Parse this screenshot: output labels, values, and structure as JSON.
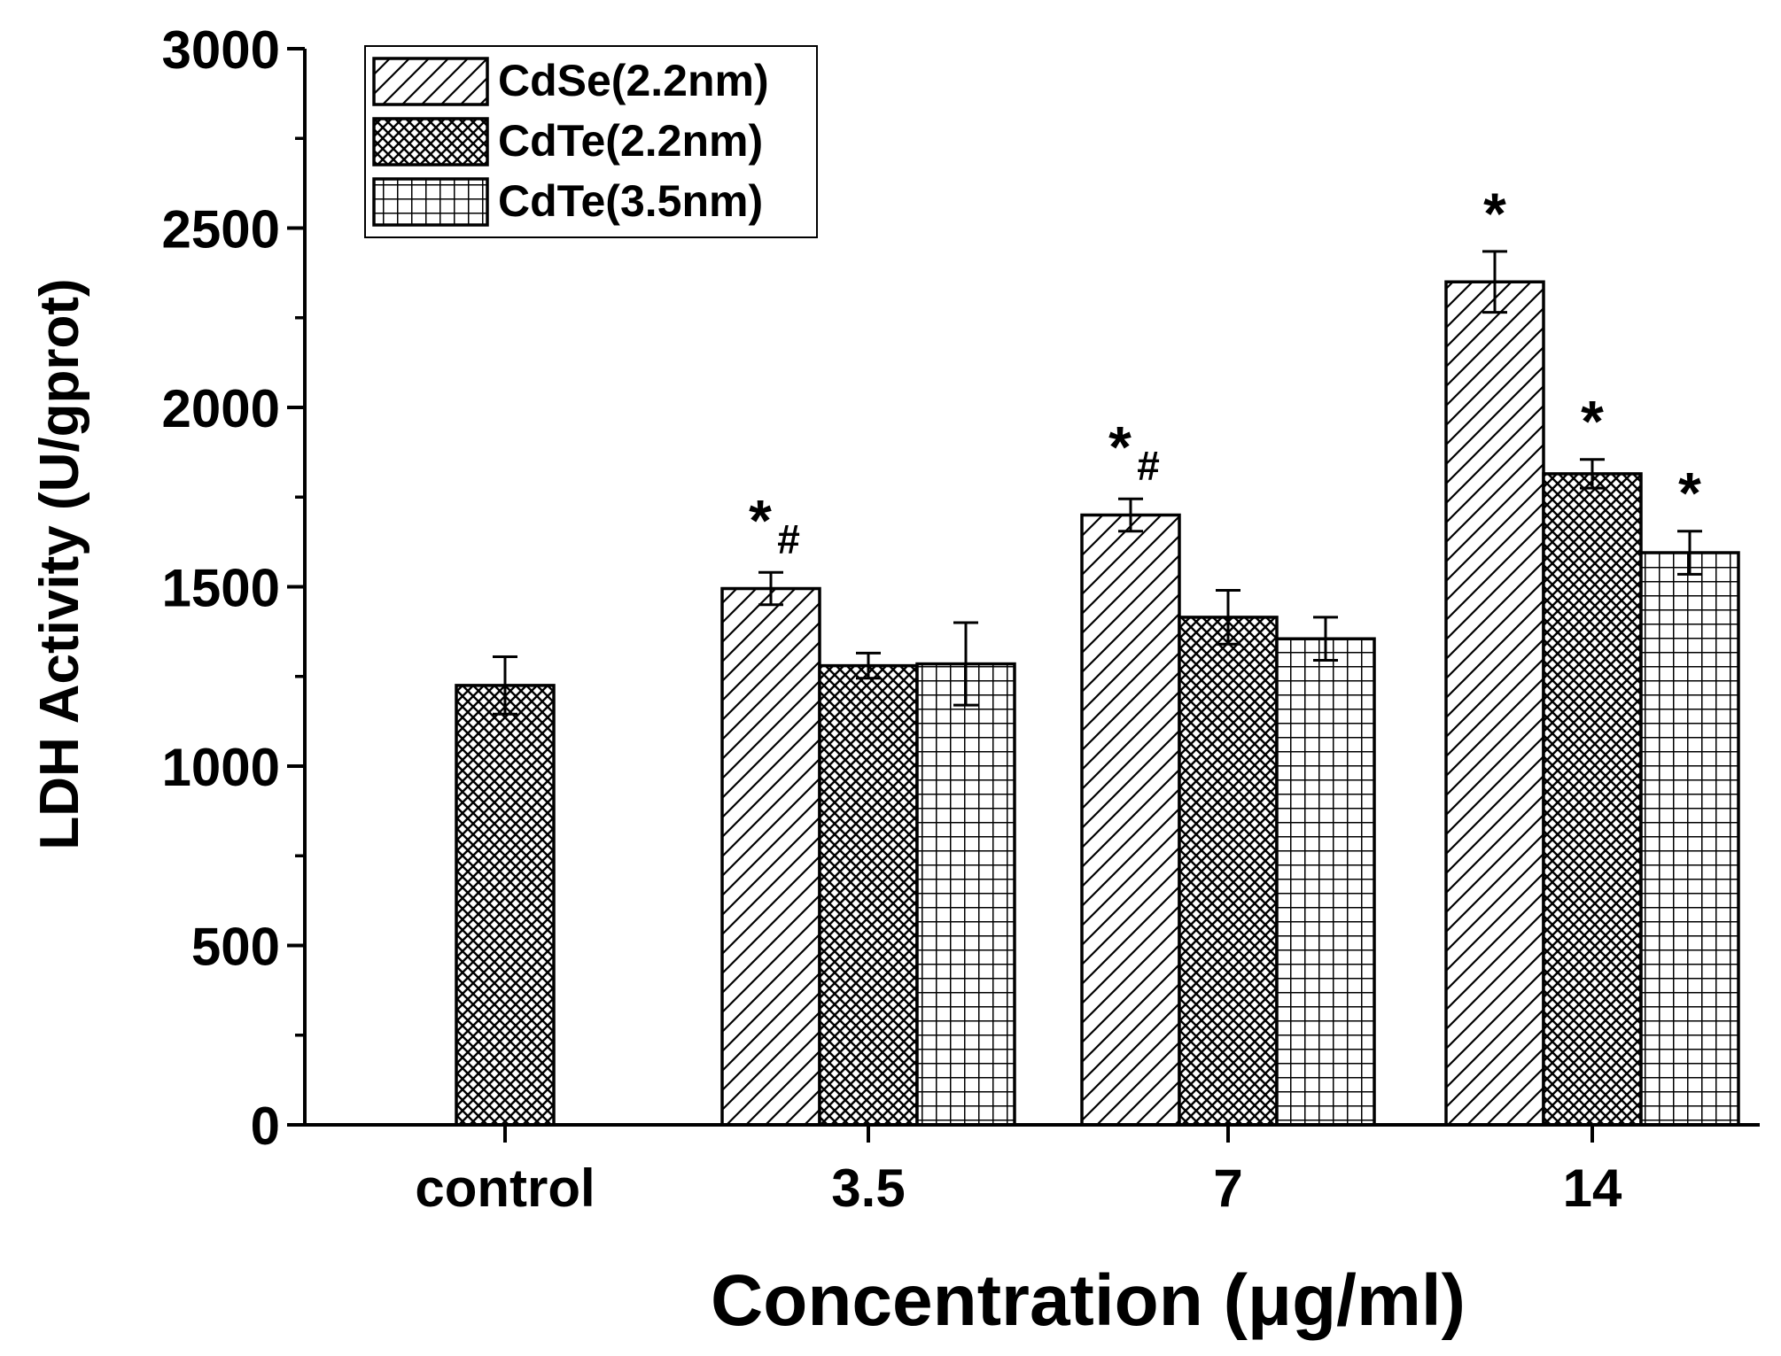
{
  "chart_data": {
    "type": "bar",
    "xlabel": "Concentration (μg/ml)",
    "ylabel": "LDH Activity (U/gprot)",
    "ylim": [
      0,
      3000
    ],
    "yticks": [
      0,
      500,
      1000,
      1500,
      2000,
      2500,
      3000
    ],
    "categories": [
      "control",
      "3.5",
      "7",
      "14"
    ],
    "legend_position": "top-left",
    "series": [
      {
        "name": "CdSe(2.2nm)",
        "pattern": "diagonal",
        "values": [
          null,
          1495,
          1700,
          2350
        ],
        "errors": [
          null,
          45,
          45,
          85
        ]
      },
      {
        "name": "CdTe(2.2nm)",
        "pattern": "crosshatch",
        "values": [
          1225,
          1280,
          1415,
          1815
        ],
        "errors": [
          80,
          35,
          75,
          40
        ]
      },
      {
        "name": "CdTe(3.5nm)",
        "pattern": "grid",
        "values": [
          null,
          1285,
          1355,
          1595
        ],
        "errors": [
          null,
          115,
          60,
          60
        ]
      }
    ],
    "annotations": [
      {
        "category": "3.5",
        "series": 0,
        "text": "*",
        "sub": "#"
      },
      {
        "category": "7",
        "series": 0,
        "text": "*",
        "sub": "#"
      },
      {
        "category": "14",
        "series": 0,
        "text": "*",
        "sub": ""
      },
      {
        "category": "14",
        "series": 1,
        "text": "*",
        "sub": ""
      },
      {
        "category": "14",
        "series": 2,
        "text": "*",
        "sub": ""
      }
    ]
  }
}
